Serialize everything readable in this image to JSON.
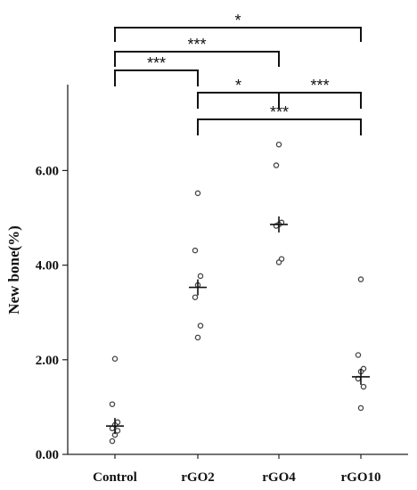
{
  "chart_data": {
    "type": "scatter",
    "categories": [
      "Control",
      "rGO2",
      "rGO4",
      "rGO10"
    ],
    "ylabel": "New bone(%)",
    "ylim": [
      0,
      7.5
    ],
    "yticks": [
      "0.00",
      "2.00",
      "4.00",
      "6.00"
    ],
    "series": [
      {
        "category": "Control",
        "points": [
          2.02,
          1.06,
          0.68,
          0.62,
          0.55,
          0.5,
          0.41,
          0.28
        ],
        "mean": 0.6
      },
      {
        "category": "rGO2",
        "points": [
          5.52,
          4.31,
          3.77,
          3.58,
          3.32,
          2.72,
          2.47
        ],
        "mean": 3.53
      },
      {
        "category": "rGO4",
        "points": [
          6.55,
          6.11,
          4.9,
          4.86,
          4.83,
          4.13,
          4.06
        ],
        "mean": 4.86
      },
      {
        "category": "rGO10",
        "points": [
          3.7,
          2.1,
          1.81,
          1.75,
          1.6,
          1.43,
          0.98
        ],
        "mean": 1.64
      }
    ],
    "significance": [
      {
        "from": "Control",
        "to": "rGO10",
        "label": "*"
      },
      {
        "from": "Control",
        "to": "rGO4",
        "label": "***"
      },
      {
        "from": "Control",
        "to": "rGO2",
        "label": "***"
      },
      {
        "from": "rGO2",
        "to": "rGO4",
        "label": "*"
      },
      {
        "from": "rGO4",
        "to": "rGO10",
        "label": "***"
      },
      {
        "from": "rGO2",
        "to": "rGO10",
        "label": "***"
      }
    ],
    "grid": false
  }
}
